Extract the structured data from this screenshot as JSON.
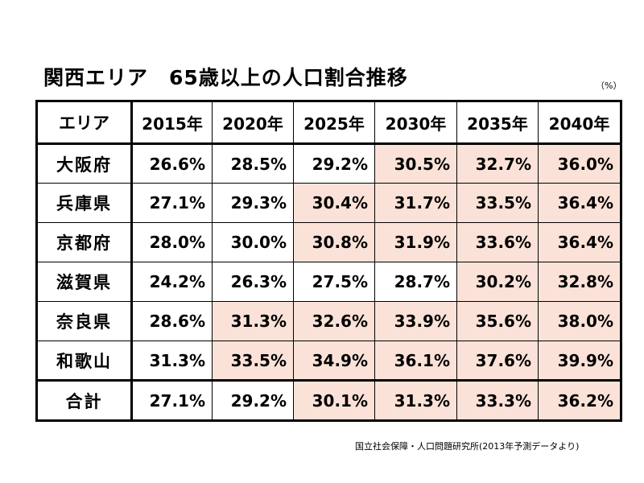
{
  "title": "関西エリア　65歳以上の人口割合推移",
  "unit": "（%）",
  "source": "国立社会保障・人口問題研究所(2013年予測データより)",
  "colors": {
    "highlight": "#fbe2d8",
    "border": "#000000"
  },
  "chart_data": {
    "type": "table",
    "title": "関西エリア　65歳以上の人口割合推移",
    "unit": "%",
    "columns": [
      "エリア",
      "2015年",
      "2020年",
      "2025年",
      "2030年",
      "2035年",
      "2040年"
    ],
    "rows": [
      {
        "area": "大阪府",
        "values": [
          "26.6%",
          "28.5%",
          "29.2%",
          "30.5%",
          "32.7%",
          "36.0%"
        ],
        "highlight": [
          false,
          false,
          false,
          true,
          true,
          true
        ]
      },
      {
        "area": "兵庫県",
        "values": [
          "27.1%",
          "29.3%",
          "30.4%",
          "31.7%",
          "33.5%",
          "36.4%"
        ],
        "highlight": [
          false,
          false,
          true,
          true,
          true,
          true
        ]
      },
      {
        "area": "京都府",
        "values": [
          "28.0%",
          "30.0%",
          "30.8%",
          "31.9%",
          "33.6%",
          "36.4%"
        ],
        "highlight": [
          false,
          false,
          true,
          true,
          true,
          true
        ]
      },
      {
        "area": "滋賀県",
        "values": [
          "24.2%",
          "26.3%",
          "27.5%",
          "28.7%",
          "30.2%",
          "32.8%"
        ],
        "highlight": [
          false,
          false,
          false,
          false,
          true,
          true
        ]
      },
      {
        "area": "奈良県",
        "values": [
          "28.6%",
          "31.3%",
          "32.6%",
          "33.9%",
          "35.6%",
          "38.0%"
        ],
        "highlight": [
          false,
          true,
          true,
          true,
          true,
          true
        ]
      },
      {
        "area": "和歌山",
        "values": [
          "31.3%",
          "33.5%",
          "34.9%",
          "36.1%",
          "37.6%",
          "39.9%"
        ],
        "highlight": [
          false,
          true,
          true,
          true,
          true,
          true
        ]
      }
    ],
    "total": {
      "area": "合計",
      "values": [
        "27.1%",
        "29.2%",
        "30.1%",
        "31.3%",
        "33.3%",
        "36.2%"
      ],
      "highlight": [
        false,
        false,
        true,
        true,
        true,
        true
      ]
    }
  }
}
